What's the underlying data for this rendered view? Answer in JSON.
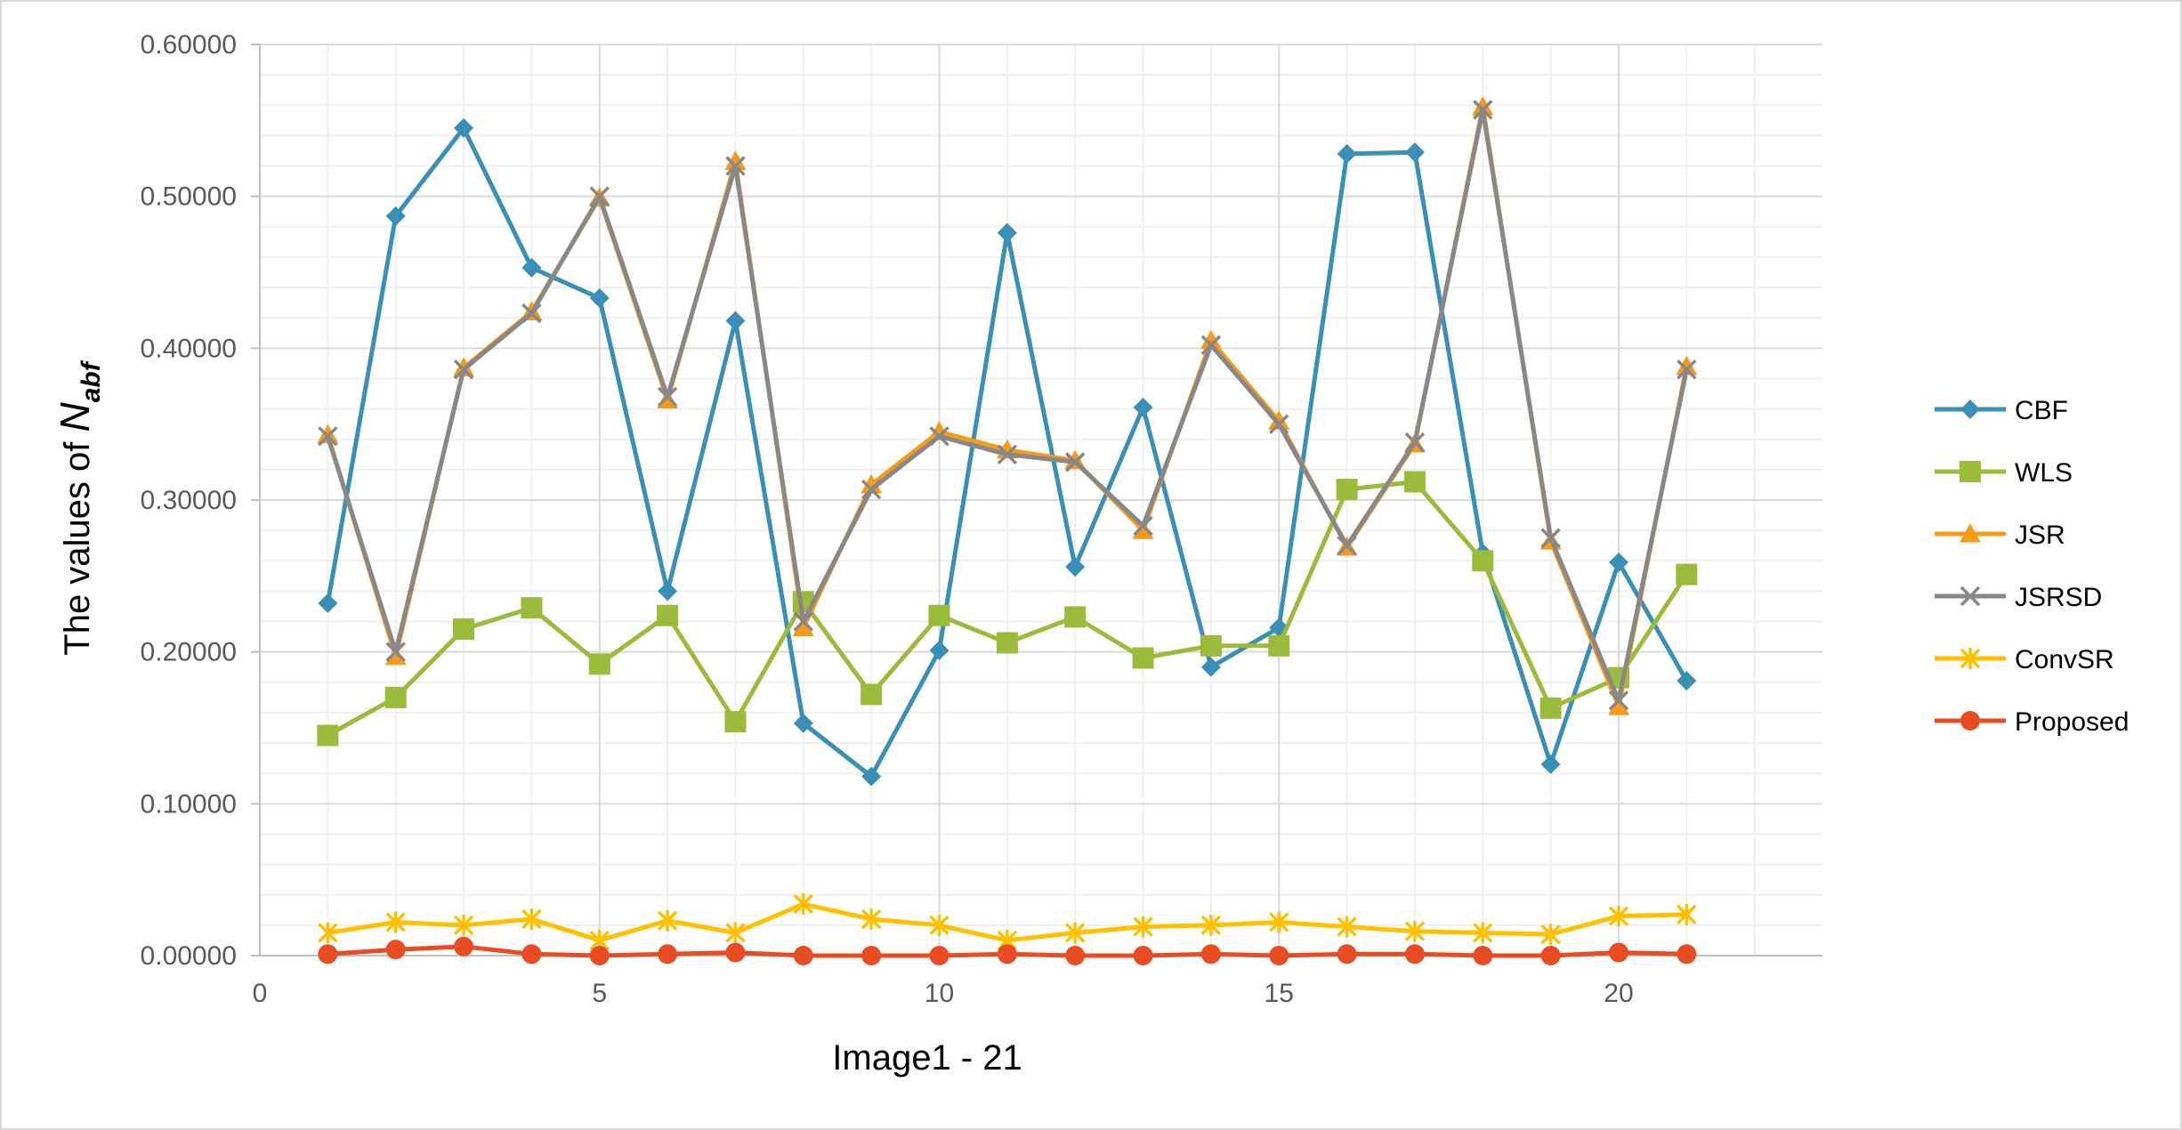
{
  "chart_data": {
    "type": "line",
    "title": "",
    "xlabel": "Image1 - 21",
    "ylabel_prefix": "The values of ",
    "ylabel_symbol": "N",
    "ylabel_subscript": "abf",
    "xlim": [
      0,
      23
    ],
    "ylim": [
      0,
      0.6
    ],
    "x_ticks": [
      0,
      5,
      10,
      15,
      20
    ],
    "y_ticks": [
      "0.00000",
      "0.10000",
      "0.20000",
      "0.30000",
      "0.40000",
      "0.50000",
      "0.60000"
    ],
    "grid": true,
    "legend_position": "right",
    "x": [
      1,
      2,
      3,
      4,
      5,
      6,
      7,
      8,
      9,
      10,
      11,
      12,
      13,
      14,
      15,
      16,
      17,
      18,
      19,
      20,
      21
    ],
    "series": [
      {
        "name": "CBF",
        "color": "#3a8fb7",
        "marker": "diamond",
        "values": [
          0.232,
          0.487,
          0.545,
          0.453,
          0.433,
          0.24,
          0.418,
          0.153,
          0.118,
          0.201,
          0.476,
          0.256,
          0.361,
          0.19,
          0.216,
          0.528,
          0.529,
          0.265,
          0.126,
          0.259,
          0.181
        ]
      },
      {
        "name": "WLS",
        "color": "#9bbb3b",
        "marker": "square",
        "values": [
          0.145,
          0.17,
          0.215,
          0.229,
          0.192,
          0.224,
          0.154,
          0.233,
          0.172,
          0.224,
          0.206,
          0.223,
          0.196,
          0.204,
          0.204,
          0.307,
          0.312,
          0.26,
          0.163,
          0.183,
          0.251
        ]
      },
      {
        "name": "JSR",
        "color": "#f79a1a",
        "marker": "triangle",
        "values": [
          0.343,
          0.197,
          0.387,
          0.424,
          0.499,
          0.366,
          0.523,
          0.216,
          0.31,
          0.345,
          0.333,
          0.326,
          0.28,
          0.405,
          0.352,
          0.269,
          0.337,
          0.559,
          0.273,
          0.164,
          0.388
        ]
      },
      {
        "name": "JSRSD",
        "color": "#888888",
        "marker": "x",
        "values": [
          0.342,
          0.2,
          0.386,
          0.423,
          0.5,
          0.368,
          0.52,
          0.22,
          0.307,
          0.342,
          0.33,
          0.325,
          0.283,
          0.402,
          0.35,
          0.27,
          0.338,
          0.557,
          0.275,
          0.168,
          0.386
        ]
      },
      {
        "name": "ConvSR",
        "color": "#ffc000",
        "marker": "star",
        "values": [
          0.015,
          0.022,
          0.02,
          0.024,
          0.01,
          0.023,
          0.015,
          0.034,
          0.024,
          0.02,
          0.01,
          0.015,
          0.019,
          0.02,
          0.022,
          0.019,
          0.016,
          0.015,
          0.014,
          0.026,
          0.027
        ]
      },
      {
        "name": "Proposed",
        "color": "#e84c22",
        "marker": "circle",
        "values": [
          0.001,
          0.004,
          0.006,
          0.001,
          0.0,
          0.001,
          0.002,
          0.0,
          0.0,
          0.0,
          0.001,
          0.0,
          0.0,
          0.001,
          0.0,
          0.001,
          0.001,
          0.0,
          0.0,
          0.002,
          0.001
        ]
      }
    ]
  }
}
